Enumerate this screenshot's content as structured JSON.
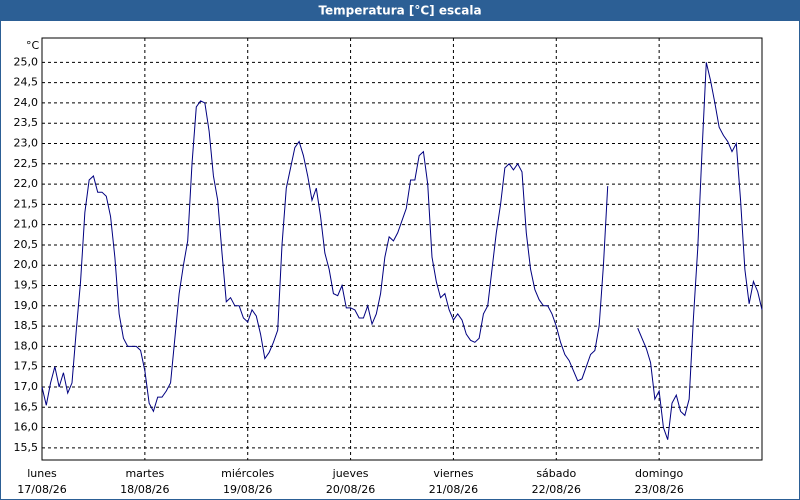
{
  "chart_data": {
    "type": "line",
    "title": "Temperatura [°C] escala",
    "y_label": "°C",
    "x": [
      0,
      1,
      2,
      3,
      4,
      5,
      6,
      7,
      8,
      9,
      10,
      11,
      12,
      13,
      14,
      15,
      16,
      17,
      18,
      19,
      20,
      21,
      22,
      23,
      24,
      25,
      26,
      27,
      28,
      29,
      30,
      31,
      32,
      33,
      34,
      35,
      36,
      37,
      38,
      39,
      40,
      41,
      42,
      43,
      44,
      45,
      46,
      47,
      48,
      49,
      50,
      51,
      52,
      53,
      54,
      55,
      56,
      57,
      58,
      59,
      60,
      61,
      62,
      63,
      64,
      65,
      66,
      67,
      68,
      69,
      70,
      71,
      72,
      73,
      74,
      75,
      76,
      77,
      78,
      79,
      80,
      81,
      82,
      83,
      84,
      85,
      86,
      87,
      88,
      89,
      90,
      91,
      92,
      93,
      94,
      95,
      96,
      97,
      98,
      99,
      100,
      101,
      102,
      103,
      104,
      105,
      106,
      107,
      108,
      109,
      110,
      111,
      112,
      113,
      114,
      115,
      116,
      117,
      118,
      119,
      120,
      121,
      122,
      123,
      124,
      125,
      126,
      127,
      128,
      129,
      130,
      131,
      132,
      133,
      134,
      135,
      136,
      137,
      138,
      139,
      140,
      141,
      142,
      143,
      144,
      145,
      146,
      147,
      148,
      149,
      150,
      151,
      152,
      153,
      154,
      155,
      156,
      157,
      158,
      159,
      160,
      161,
      162,
      163,
      164,
      165,
      166,
      167,
      168
    ],
    "values": [
      17.0,
      16.55,
      17.1,
      17.5,
      17.0,
      17.35,
      16.85,
      17.1,
      18.4,
      19.6,
      21.3,
      22.1,
      22.2,
      21.8,
      21.8,
      21.7,
      21.2,
      20.2,
      18.8,
      18.2,
      18.0,
      18.0,
      18.0,
      17.9,
      17.4,
      16.6,
      16.4,
      16.75,
      16.75,
      16.9,
      17.1,
      18.2,
      19.3,
      20.0,
      20.6,
      22.5,
      23.9,
      24.05,
      24.0,
      23.3,
      22.2,
      21.6,
      20.3,
      19.1,
      19.2,
      19.0,
      19.0,
      18.7,
      18.6,
      18.9,
      18.75,
      18.3,
      17.7,
      17.85,
      18.1,
      18.4,
      20.5,
      21.9,
      22.4,
      22.9,
      23.05,
      22.7,
      22.2,
      21.6,
      21.9,
      21.2,
      20.3,
      19.9,
      19.3,
      19.25,
      19.5,
      18.95,
      18.95,
      18.9,
      18.7,
      18.7,
      19.0,
      18.55,
      18.8,
      19.3,
      20.2,
      20.7,
      20.6,
      20.8,
      21.1,
      21.4,
      22.1,
      22.1,
      22.7,
      22.8,
      22.0,
      20.2,
      19.6,
      19.2,
      19.3,
      18.9,
      18.65,
      18.8,
      18.65,
      18.3,
      18.15,
      18.1,
      18.2,
      18.8,
      19.0,
      19.9,
      20.8,
      21.5,
      22.4,
      22.5,
      22.35,
      22.5,
      22.3,
      20.8,
      19.9,
      19.4,
      19.15,
      19.0,
      19.0,
      18.8,
      18.5,
      18.1,
      17.8,
      17.65,
      17.4,
      17.15,
      17.2,
      17.5,
      17.8,
      17.9,
      18.5,
      20.0,
      21.95,
      null,
      null,
      null,
      null,
      null,
      null,
      18.45,
      18.2,
      17.95,
      17.6,
      16.7,
      16.9,
      16.0,
      15.7,
      16.6,
      16.8,
      16.4,
      16.3,
      16.7,
      18.7,
      20.4,
      22.8,
      25.0,
      24.55,
      24.0,
      23.4,
      23.2,
      23.05,
      22.8,
      23.0,
      21.6,
      19.9,
      19.05,
      19.6,
      19.35,
      18.9
    ],
    "color": "#000080",
    "xlim": [
      0,
      168
    ],
    "xticks": [
      0,
      24,
      48,
      72,
      96,
      120,
      144
    ],
    "x_tick_days": [
      "lunes",
      "martes",
      "miércoles",
      "jueves",
      "viernes",
      "sábado",
      "domingo"
    ],
    "x_tick_dates": [
      "17/08/26",
      "18/08/26",
      "19/08/26",
      "20/08/26",
      "21/08/26",
      "22/08/26",
      "23/08/26"
    ],
    "ylim": [
      15.2,
      25.6
    ],
    "yticks": [
      {
        "value": 15.5,
        "label": "15,5"
      },
      {
        "value": 16,
        "label": "16,0"
      },
      {
        "value": 16.5,
        "label": "16,5"
      },
      {
        "value": 17,
        "label": "17,0"
      },
      {
        "value": 17.5,
        "label": "17,5"
      },
      {
        "value": 18,
        "label": "18,0"
      },
      {
        "value": 18.5,
        "label": "18,5"
      },
      {
        "value": 19,
        "label": "19,0"
      },
      {
        "value": 19.5,
        "label": "19,5"
      },
      {
        "value": 20,
        "label": "20,0"
      },
      {
        "value": 20.5,
        "label": "20,5"
      },
      {
        "value": 21,
        "label": "21,0"
      },
      {
        "value": 21.5,
        "label": "21,5"
      },
      {
        "value": 22,
        "label": "22,0"
      },
      {
        "value": 22.5,
        "label": "22,5"
      },
      {
        "value": 23,
        "label": "23,0"
      },
      {
        "value": 23.5,
        "label": "23,5"
      },
      {
        "value": 24,
        "label": "24,0"
      },
      {
        "value": 24.5,
        "label": "24,5"
      },
      {
        "value": 25,
        "label": "25,0"
      }
    ],
    "grid": true
  }
}
